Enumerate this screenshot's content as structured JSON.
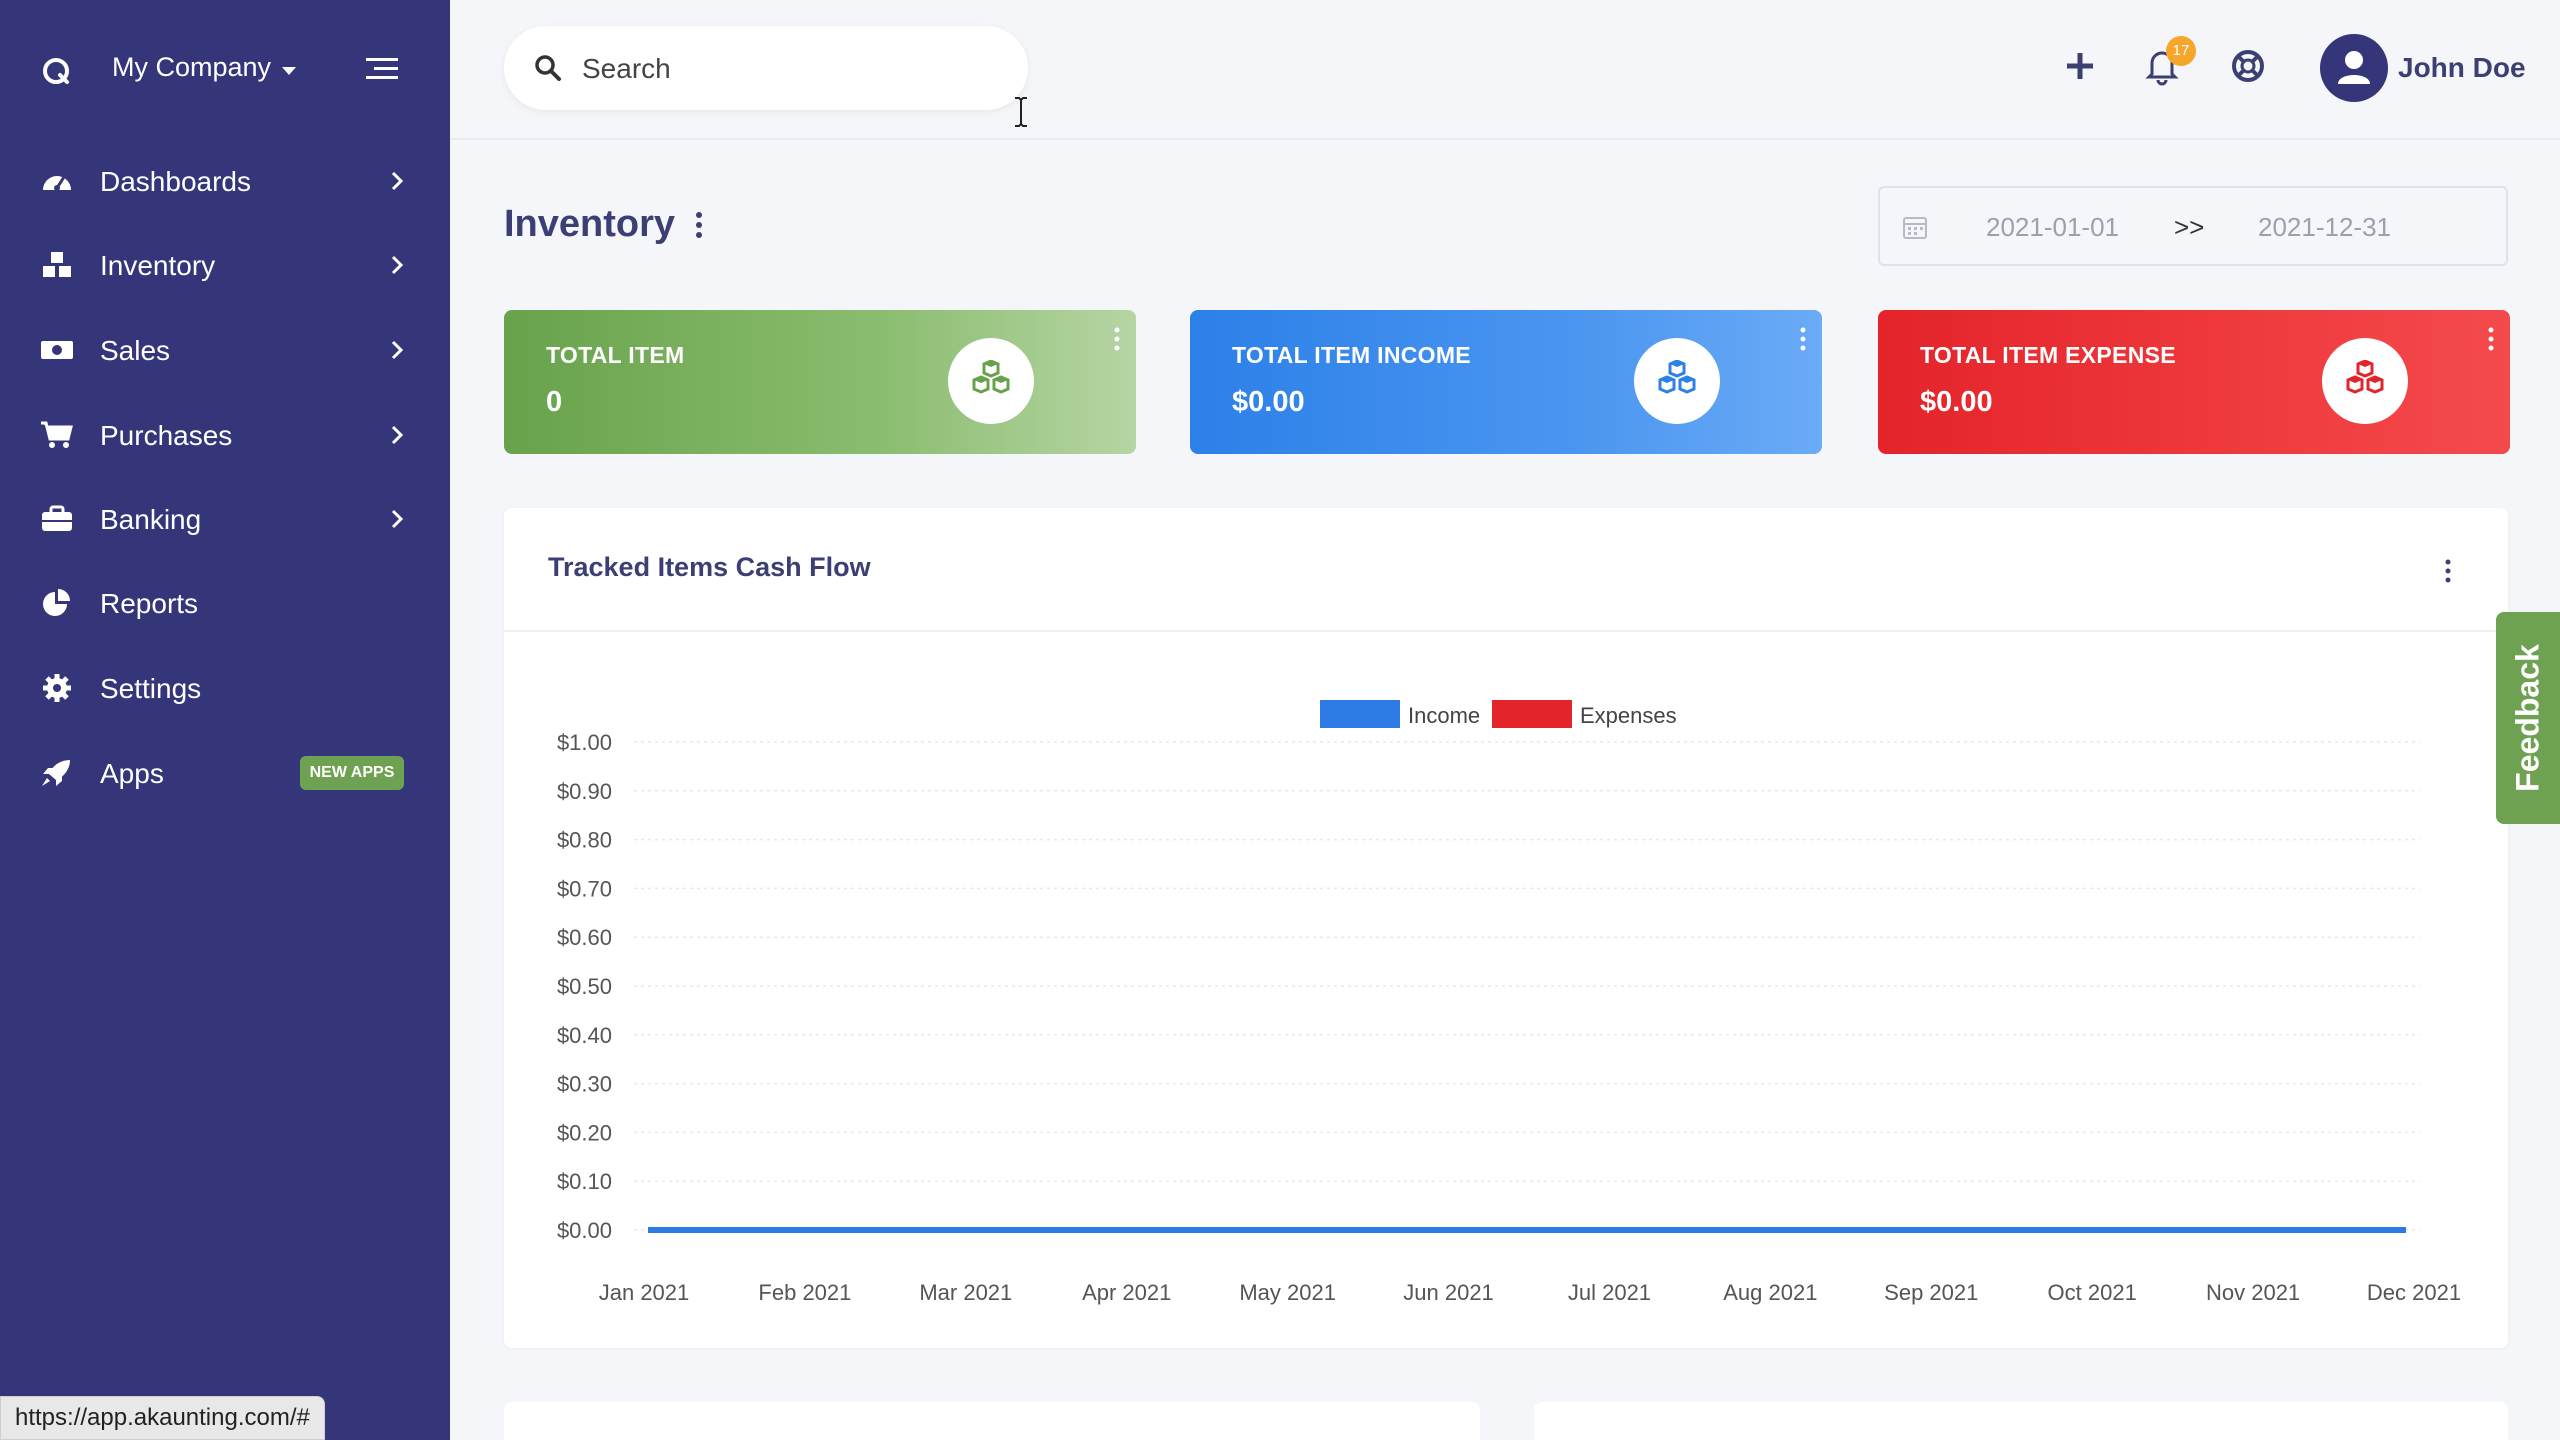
{
  "sidebar": {
    "company": "My Company",
    "items": [
      {
        "label": "Dashboards",
        "icon": "gauge-icon"
      },
      {
        "label": "Inventory",
        "icon": "cubes-icon"
      },
      {
        "label": "Sales",
        "icon": "money-icon"
      },
      {
        "label": "Purchases",
        "icon": "cart-icon"
      },
      {
        "label": "Banking",
        "icon": "briefcase-icon"
      },
      {
        "label": "Reports",
        "icon": "pie-chart-icon"
      },
      {
        "label": "Settings",
        "icon": "gear-icon"
      },
      {
        "label": "Apps",
        "icon": "rocket-icon",
        "badge": "NEW APPS"
      }
    ]
  },
  "topbar": {
    "search_placeholder": "Search",
    "notification_count": "17",
    "user_name": "John Doe"
  },
  "page": {
    "title": "Inventory",
    "date_from": "2021-01-01",
    "date_separator": ">>",
    "date_to": "2021-12-31"
  },
  "cards": [
    {
      "title": "TOTAL ITEM",
      "value": "0",
      "color": "#68a24b"
    },
    {
      "title": "TOTAL ITEM INCOME",
      "value": "$0.00",
      "color": "#2c80e8"
    },
    {
      "title": "TOTAL ITEM EXPENSE",
      "value": "$0.00",
      "color": "#e3242b"
    }
  ],
  "chart_card": {
    "title": "Tracked Items Cash Flow"
  },
  "chart_data": {
    "type": "line",
    "title": "",
    "xlabel": "",
    "ylabel": "",
    "categories": [
      "Jan 2021",
      "Feb 2021",
      "Mar 2021",
      "Apr 2021",
      "May 2021",
      "Jun 2021",
      "Jul 2021",
      "Aug 2021",
      "Sep 2021",
      "Oct 2021",
      "Nov 2021",
      "Dec 2021"
    ],
    "y_ticks": [
      "$0.00",
      "$0.10",
      "$0.20",
      "$0.30",
      "$0.40",
      "$0.50",
      "$0.60",
      "$0.70",
      "$0.80",
      "$0.90",
      "$1.00"
    ],
    "ylim": [
      0,
      1
    ],
    "grid": true,
    "legend_position": "top-center",
    "series": [
      {
        "name": "Income",
        "color": "#2c7be5",
        "values": [
          0,
          0,
          0,
          0,
          0,
          0,
          0,
          0,
          0,
          0,
          0,
          0
        ]
      },
      {
        "name": "Expenses",
        "color": "#e3242b",
        "values": [
          0,
          0,
          0,
          0,
          0,
          0,
          0,
          0,
          0,
          0,
          0,
          0
        ]
      }
    ]
  },
  "feedback_label": "Feedback",
  "status_url": "https://app.akaunting.com/#"
}
